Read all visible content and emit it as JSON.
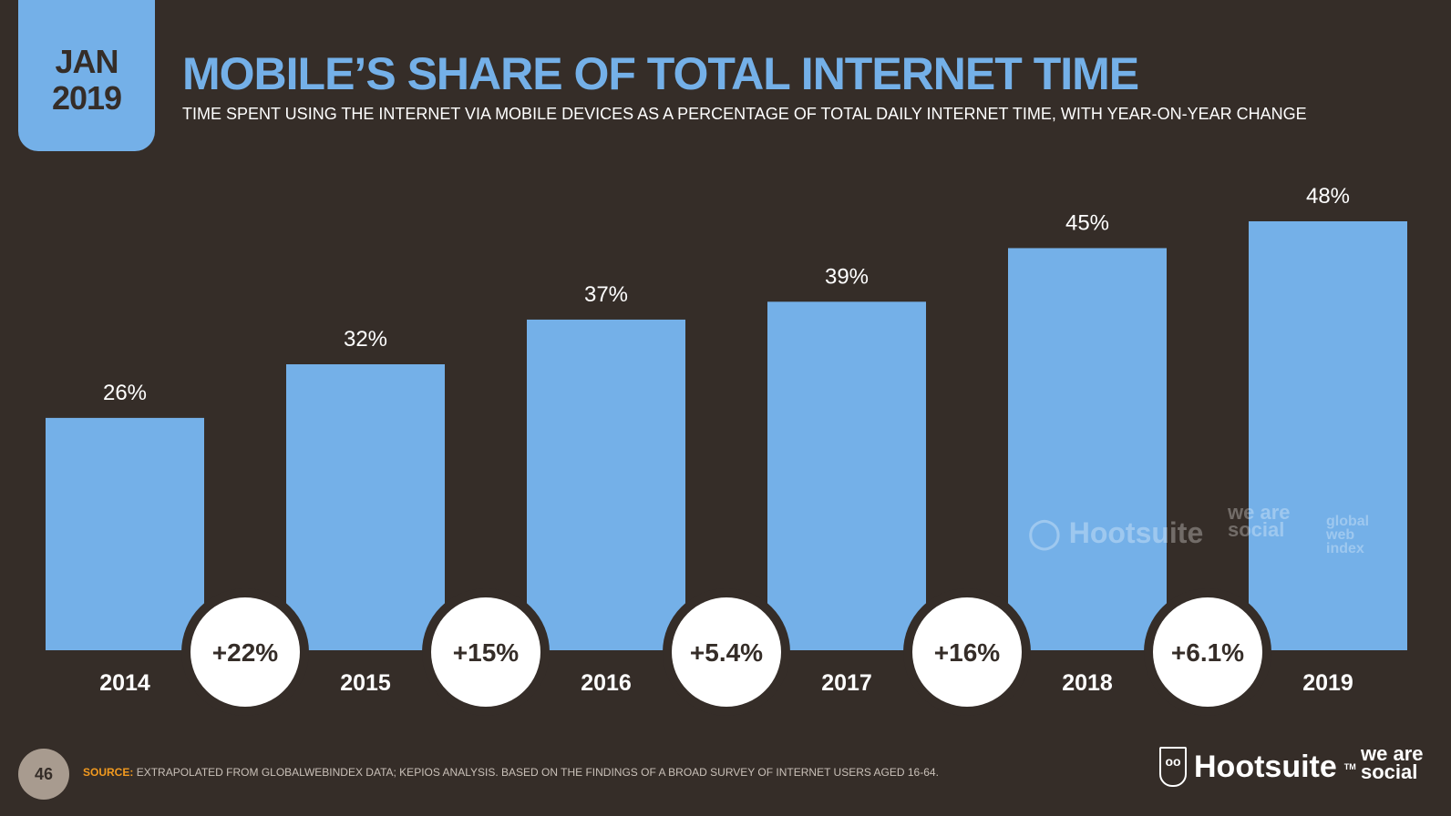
{
  "header": {
    "month": "JAN",
    "year": "2019",
    "title": "MOBILE’S SHARE OF TOTAL INTERNET TIME",
    "subtitle": "TIME SPENT USING THE INTERNET VIA MOBILE DEVICES AS A PERCENTAGE OF TOTAL DAILY INTERNET TIME, WITH YEAR-ON-YEAR CHANGE"
  },
  "chart_data": {
    "type": "bar",
    "categories": [
      "2014",
      "2015",
      "2016",
      "2017",
      "2018",
      "2019"
    ],
    "values": [
      26,
      32,
      37,
      39,
      45,
      48
    ],
    "data_labels": [
      "26%",
      "32%",
      "37%",
      "39%",
      "45%",
      "48%"
    ],
    "yoy_change": [
      "+22%",
      "+15%",
      "+5.4%",
      "+16%",
      "+6.1%"
    ],
    "ylim": [
      0,
      48
    ],
    "grid": false,
    "colors": {
      "bar": "#74b0e8",
      "background": "#352d28",
      "change_circle": "#ffffff"
    }
  },
  "footer": {
    "page": "46",
    "source_label": "SOURCE:",
    "source_text": "EXTRAPOLATED FROM GLOBALWEBINDEX DATA; KEPIOS ANALYSIS. BASED ON THE FINDINGS OF A BROAD SURVEY OF INTERNET USERS AGED 16-64.",
    "logo_hootsuite": "Hootsuite",
    "logo_was": "we are social"
  },
  "watermark": {
    "hootsuite": "Hootsuite",
    "was": "we are social",
    "gwi": "global web index"
  }
}
